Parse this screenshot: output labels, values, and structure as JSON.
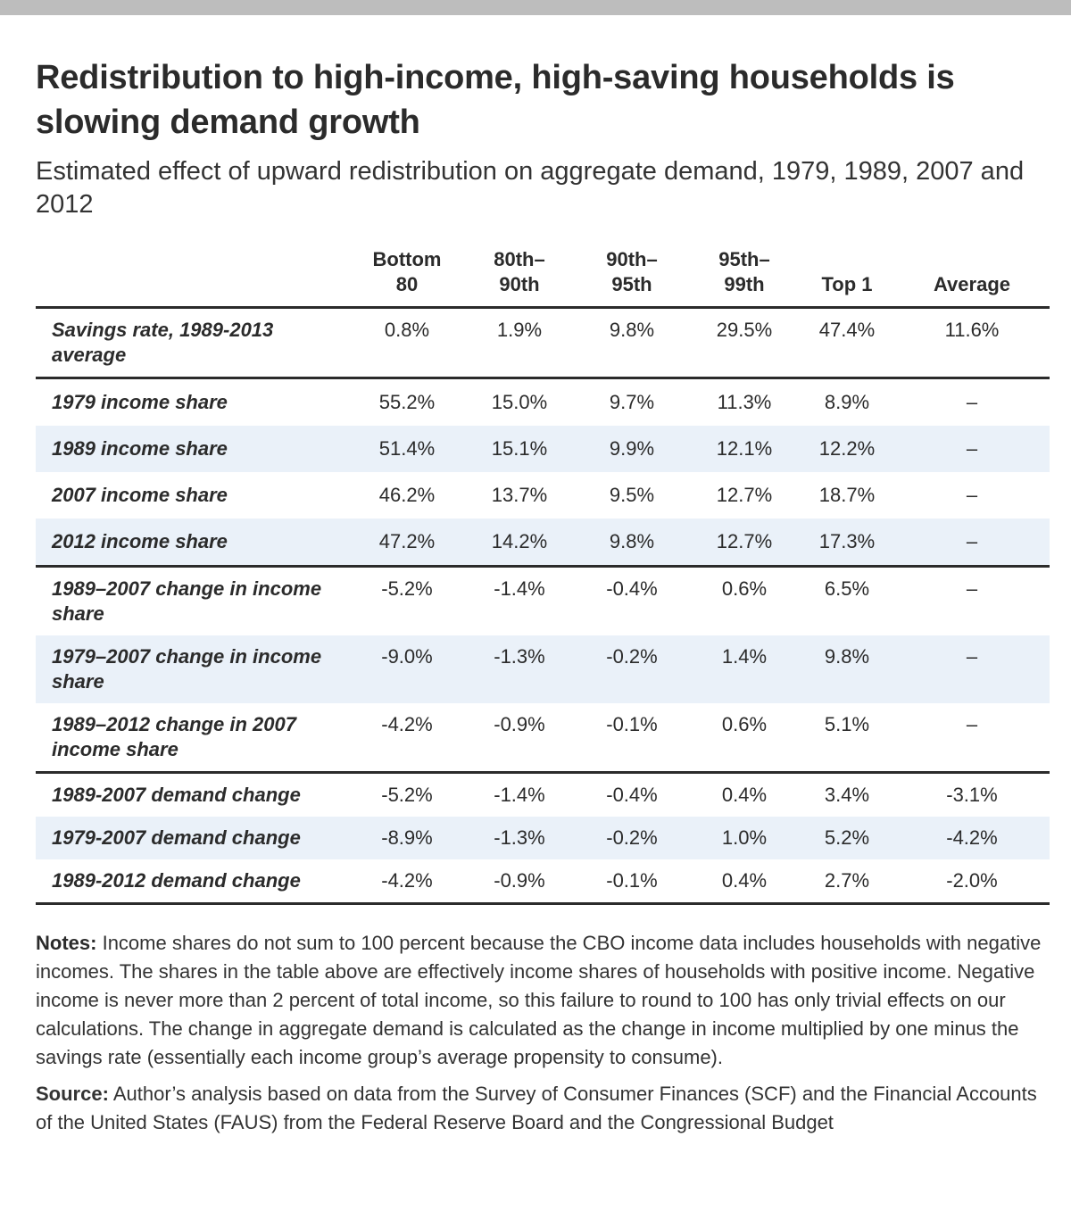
{
  "title": "Redistribution to high-income, high-saving households is slowing demand growth",
  "subtitle": "Estimated effect of upward redistribution on aggregate demand, 1979, 1989, 2007 and 2012",
  "table": {
    "headers": [
      "",
      "Bottom 80",
      "80th–90th",
      "90th–95th",
      "95th–99th",
      "Top 1",
      "Average"
    ],
    "rows": [
      {
        "label": "Savings rate, 1989-2013 average",
        "values": [
          "0.8%",
          "1.9%",
          "9.8%",
          "29.5%",
          "47.4%",
          "11.6%"
        ]
      },
      {
        "label": "1979 income share",
        "values": [
          "55.2%",
          "15.0%",
          "9.7%",
          "11.3%",
          "8.9%",
          "–"
        ]
      },
      {
        "label": "1989 income share",
        "values": [
          "51.4%",
          "15.1%",
          "9.9%",
          "12.1%",
          "12.2%",
          "–"
        ]
      },
      {
        "label": "2007 income share",
        "values": [
          "46.2%",
          "13.7%",
          "9.5%",
          "12.7%",
          "18.7%",
          "–"
        ]
      },
      {
        "label": "2012 income share",
        "values": [
          "47.2%",
          "14.2%",
          "9.8%",
          "12.7%",
          "17.3%",
          "–"
        ]
      },
      {
        "label": "1989–2007 change in income share",
        "values": [
          "-5.2%",
          "-1.4%",
          "-0.4%",
          "0.6%",
          "6.5%",
          "–"
        ]
      },
      {
        "label": "1979–2007 change in income share",
        "values": [
          "-9.0%",
          "-1.3%",
          "-0.2%",
          "1.4%",
          "9.8%",
          "–"
        ]
      },
      {
        "label": "1989–2012 change in 2007 income share",
        "values": [
          "-4.2%",
          "-0.9%",
          "-0.1%",
          "0.6%",
          "5.1%",
          "–"
        ]
      },
      {
        "label": "1989-2007 demand change",
        "values": [
          "-5.2%",
          "-1.4%",
          "-0.4%",
          "0.4%",
          "3.4%",
          "-3.1%"
        ]
      },
      {
        "label": "1979-2007 demand change",
        "values": [
          "-8.9%",
          "-1.3%",
          "-0.2%",
          "1.0%",
          "5.2%",
          "-4.2%"
        ]
      },
      {
        "label": "1989-2012 demand change",
        "values": [
          "-4.2%",
          "-0.9%",
          "-0.1%",
          "0.4%",
          "2.7%",
          "-2.0%"
        ]
      }
    ]
  },
  "notes": {
    "label": "Notes:",
    "text": "Income shares do not sum to 100 percent because the CBO income data includes households with negative incomes. The shares in the table above are effectively income shares of households with positive income. Negative income is never more than 2 percent of total income, so this failure to round to 100 has only trivial effects on our calculations. The change in aggregate demand is calculated as the change in income multiplied by one minus the savings rate (essentially each income group’s average propensity to consume)."
  },
  "source": {
    "label": "Source:",
    "text": "Author’s analysis based on data from the Survey of Consumer Finances (SCF) and the Financial Accounts of the United States (FAUS) from the Federal Reserve Board and the Congressional Budget"
  },
  "colors": {
    "text": "#2b2b2b",
    "row_shade": "#eaf1f9",
    "top_bar": "#bdbdbd"
  }
}
